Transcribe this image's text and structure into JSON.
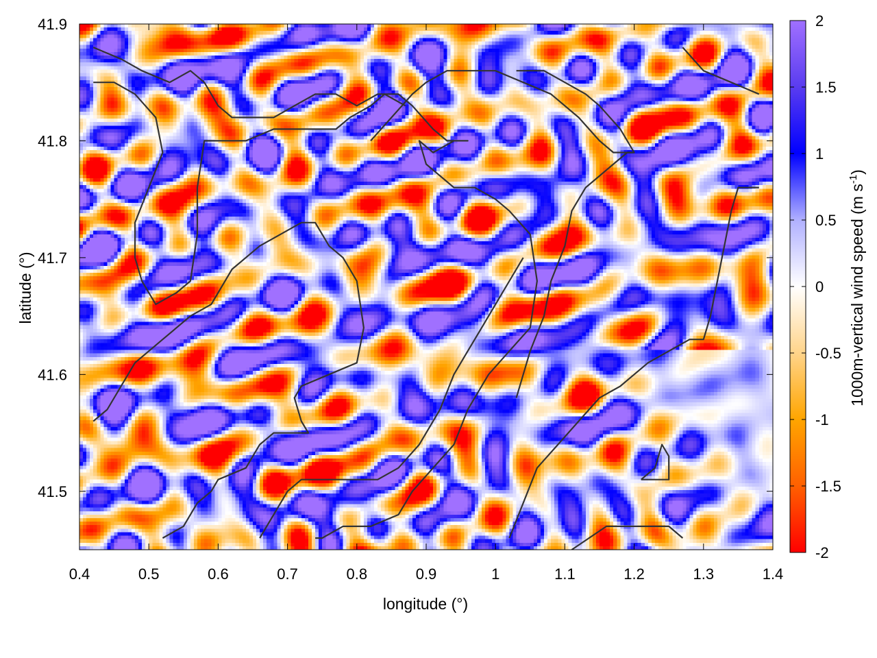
{
  "chart_data": {
    "type": "heatmap",
    "title": "",
    "xlabel": "longitude (°)",
    "ylabel": "latitude (°)",
    "colorbar_label_main": "1000m-vertical wind speed (m s",
    "colorbar_label_sup": "-1",
    "colorbar_label_close": ")",
    "xlim": [
      0.4,
      1.4
    ],
    "ylim": [
      41.45,
      41.9
    ],
    "xticks": [
      "0.4",
      "0.5",
      "0.6",
      "0.7",
      "0.8",
      "0.9",
      "1",
      "1.1",
      "1.2",
      "1.3",
      "1.4"
    ],
    "xtick_values": [
      0.4,
      0.5,
      0.6,
      0.7,
      0.8,
      0.9,
      1.0,
      1.1,
      1.2,
      1.3,
      1.4
    ],
    "yticks": [
      "41.5",
      "41.6",
      "41.7",
      "41.8",
      "41.9"
    ],
    "ytick_values": [
      41.5,
      41.6,
      41.7,
      41.8,
      41.9
    ],
    "colorbar_range": [
      -2,
      2
    ],
    "colorbar_ticks": [
      "-2",
      "-1.5",
      "-1",
      "-0.5",
      "0",
      "0.5",
      "1",
      "1.5",
      "2"
    ],
    "colorbar_tick_values": [
      -2,
      -1.5,
      -1,
      -0.5,
      0,
      0.5,
      1,
      1.5,
      2
    ],
    "colormap": [
      {
        "value": -2,
        "color": "#ff0000"
      },
      {
        "value": -1.5,
        "color": "#ff6000"
      },
      {
        "value": -1,
        "color": "#ffa500"
      },
      {
        "value": -0.5,
        "color": "#ffd48a"
      },
      {
        "value": 0,
        "color": "#ffffff"
      },
      {
        "value": 0.5,
        "color": "#b0b0ff"
      },
      {
        "value": 1,
        "color": "#0000ff"
      },
      {
        "value": 1.5,
        "color": "#5a3cf0"
      },
      {
        "value": 2,
        "color": "#a070ff"
      }
    ],
    "grid": false,
    "contour_color": "#333333",
    "contours": [
      [
        [
          0.42,
          41.88
        ],
        [
          0.46,
          41.87
        ],
        [
          0.49,
          41.86
        ],
        [
          0.53,
          41.85
        ],
        [
          0.56,
          41.86
        ],
        [
          0.58,
          41.85
        ],
        [
          0.6,
          41.83
        ],
        [
          0.62,
          41.82
        ],
        [
          0.65,
          41.82
        ],
        [
          0.68,
          41.82
        ],
        [
          0.71,
          41.83
        ],
        [
          0.74,
          41.84
        ],
        [
          0.77,
          41.84
        ],
        [
          0.8,
          41.83
        ],
        [
          0.83,
          41.84
        ],
        [
          0.86,
          41.84
        ],
        [
          0.88,
          41.83
        ],
        [
          0.91,
          41.81
        ],
        [
          0.93,
          41.8
        ],
        [
          0.96,
          41.8
        ],
        [
          0.94,
          41.8
        ],
        [
          0.91,
          41.79
        ],
        [
          0.89,
          41.8
        ],
        [
          0.9,
          41.78
        ],
        [
          0.94,
          41.76
        ],
        [
          0.97,
          41.76
        ],
        [
          1.0,
          41.75
        ],
        [
          1.02,
          41.74
        ],
        [
          1.05,
          41.72
        ],
        [
          1.06,
          41.68
        ],
        [
          1.05,
          41.64
        ],
        [
          1.02,
          41.62
        ],
        [
          0.99,
          41.6
        ],
        [
          0.96,
          41.57
        ],
        [
          0.94,
          41.54
        ],
        [
          0.91,
          41.52
        ],
        [
          0.88,
          41.5
        ],
        [
          0.86,
          41.48
        ],
        [
          0.82,
          41.47
        ],
        [
          0.78,
          41.47
        ],
        [
          0.75,
          41.46
        ],
        [
          0.74,
          41.46
        ]
      ],
      [
        [
          0.42,
          41.85
        ],
        [
          0.45,
          41.85
        ],
        [
          0.48,
          41.84
        ],
        [
          0.51,
          41.82
        ],
        [
          0.52,
          41.79
        ],
        [
          0.5,
          41.76
        ],
        [
          0.48,
          41.73
        ],
        [
          0.48,
          41.7
        ],
        [
          0.49,
          41.68
        ],
        [
          0.51,
          41.66
        ],
        [
          0.54,
          41.67
        ],
        [
          0.56,
          41.68
        ],
        [
          0.57,
          41.72
        ],
        [
          0.57,
          41.76
        ],
        [
          0.58,
          41.8
        ],
        [
          0.6,
          41.8
        ],
        [
          0.64,
          41.8
        ],
        [
          0.68,
          41.81
        ],
        [
          0.71,
          41.81
        ],
        [
          0.74,
          41.81
        ],
        [
          0.77,
          41.81
        ],
        [
          0.79,
          41.82
        ],
        [
          0.82,
          41.83
        ],
        [
          0.84,
          41.84
        ],
        [
          0.87,
          41.83
        ]
      ],
      [
        [
          0.42,
          41.56
        ],
        [
          0.44,
          41.57
        ],
        [
          0.46,
          41.59
        ],
        [
          0.48,
          41.61
        ],
        [
          0.52,
          41.63
        ],
        [
          0.56,
          41.65
        ],
        [
          0.59,
          41.66
        ],
        [
          0.62,
          41.69
        ],
        [
          0.66,
          41.71
        ],
        [
          0.69,
          41.72
        ],
        [
          0.72,
          41.73
        ],
        [
          0.74,
          41.73
        ],
        [
          0.76,
          41.71
        ],
        [
          0.78,
          41.7
        ],
        [
          0.8,
          41.68
        ],
        [
          0.81,
          41.64
        ],
        [
          0.8,
          41.61
        ],
        [
          0.76,
          41.6
        ],
        [
          0.72,
          41.59
        ],
        [
          0.71,
          41.58
        ],
        [
          0.72,
          41.56
        ],
        [
          0.73,
          41.55
        ],
        [
          0.7,
          41.55
        ],
        [
          0.68,
          41.55
        ],
        [
          0.66,
          41.54
        ],
        [
          0.64,
          41.52
        ],
        [
          0.6,
          41.51
        ],
        [
          0.59,
          41.5
        ],
        [
          0.57,
          41.49
        ],
        [
          0.55,
          41.47
        ],
        [
          0.52,
          41.46
        ]
      ],
      [
        [
          0.66,
          41.46
        ],
        [
          0.68,
          41.48
        ],
        [
          0.7,
          41.5
        ],
        [
          0.72,
          41.51
        ],
        [
          0.76,
          41.51
        ],
        [
          0.8,
          41.51
        ],
        [
          0.83,
          41.51
        ],
        [
          0.86,
          41.52
        ],
        [
          0.89,
          41.54
        ],
        [
          0.92,
          41.57
        ],
        [
          0.94,
          41.6
        ],
        [
          0.96,
          41.62
        ],
        [
          0.98,
          41.64
        ],
        [
          1.0,
          41.66
        ],
        [
          1.02,
          41.68
        ],
        [
          1.04,
          41.7
        ]
      ],
      [
        [
          1.02,
          41.46
        ],
        [
          1.04,
          41.49
        ],
        [
          1.06,
          41.52
        ],
        [
          1.09,
          41.54
        ],
        [
          1.12,
          41.56
        ],
        [
          1.15,
          41.58
        ],
        [
          1.18,
          41.59
        ],
        [
          1.2,
          41.6
        ],
        [
          1.22,
          41.61
        ],
        [
          1.25,
          41.62
        ],
        [
          1.28,
          41.63
        ],
        [
          1.3,
          41.63
        ],
        [
          1.31,
          41.65
        ],
        [
          1.32,
          41.68
        ],
        [
          1.33,
          41.71
        ],
        [
          1.34,
          41.74
        ],
        [
          1.35,
          41.76
        ],
        [
          1.38,
          41.76
        ]
      ],
      [
        [
          1.03,
          41.58
        ],
        [
          1.05,
          41.62
        ],
        [
          1.07,
          41.65
        ],
        [
          1.08,
          41.68
        ],
        [
          1.1,
          41.71
        ],
        [
          1.11,
          41.74
        ],
        [
          1.13,
          41.76
        ],
        [
          1.15,
          41.77
        ],
        [
          1.17,
          41.78
        ],
        [
          1.19,
          41.79
        ],
        [
          1.2,
          41.79
        ],
        [
          1.18,
          41.81
        ],
        [
          1.15,
          41.83
        ],
        [
          1.13,
          41.84
        ],
        [
          1.1,
          41.85
        ],
        [
          1.07,
          41.86
        ],
        [
          1.03,
          41.86
        ]
      ],
      [
        [
          0.82,
          41.8
        ],
        [
          0.85,
          41.82
        ],
        [
          0.88,
          41.84
        ],
        [
          0.9,
          41.85
        ],
        [
          0.93,
          41.86
        ],
        [
          0.96,
          41.86
        ],
        [
          1.0,
          41.86
        ],
        [
          1.04,
          41.85
        ],
        [
          1.08,
          41.84
        ],
        [
          1.12,
          41.82
        ],
        [
          1.15,
          41.8
        ],
        [
          1.17,
          41.79
        ],
        [
          1.2,
          41.79
        ]
      ],
      [
        [
          1.21,
          41.51
        ],
        [
          1.25,
          41.51
        ],
        [
          1.25,
          41.53
        ],
        [
          1.24,
          41.54
        ],
        [
          1.23,
          41.52
        ],
        [
          1.21,
          41.51
        ]
      ],
      [
        [
          1.11,
          41.45
        ],
        [
          1.16,
          41.47
        ],
        [
          1.2,
          41.47
        ],
        [
          1.25,
          41.47
        ],
        [
          1.27,
          41.46
        ]
      ],
      [
        [
          1.27,
          41.88
        ],
        [
          1.3,
          41.86
        ],
        [
          1.34,
          41.85
        ],
        [
          1.38,
          41.84
        ]
      ]
    ]
  }
}
